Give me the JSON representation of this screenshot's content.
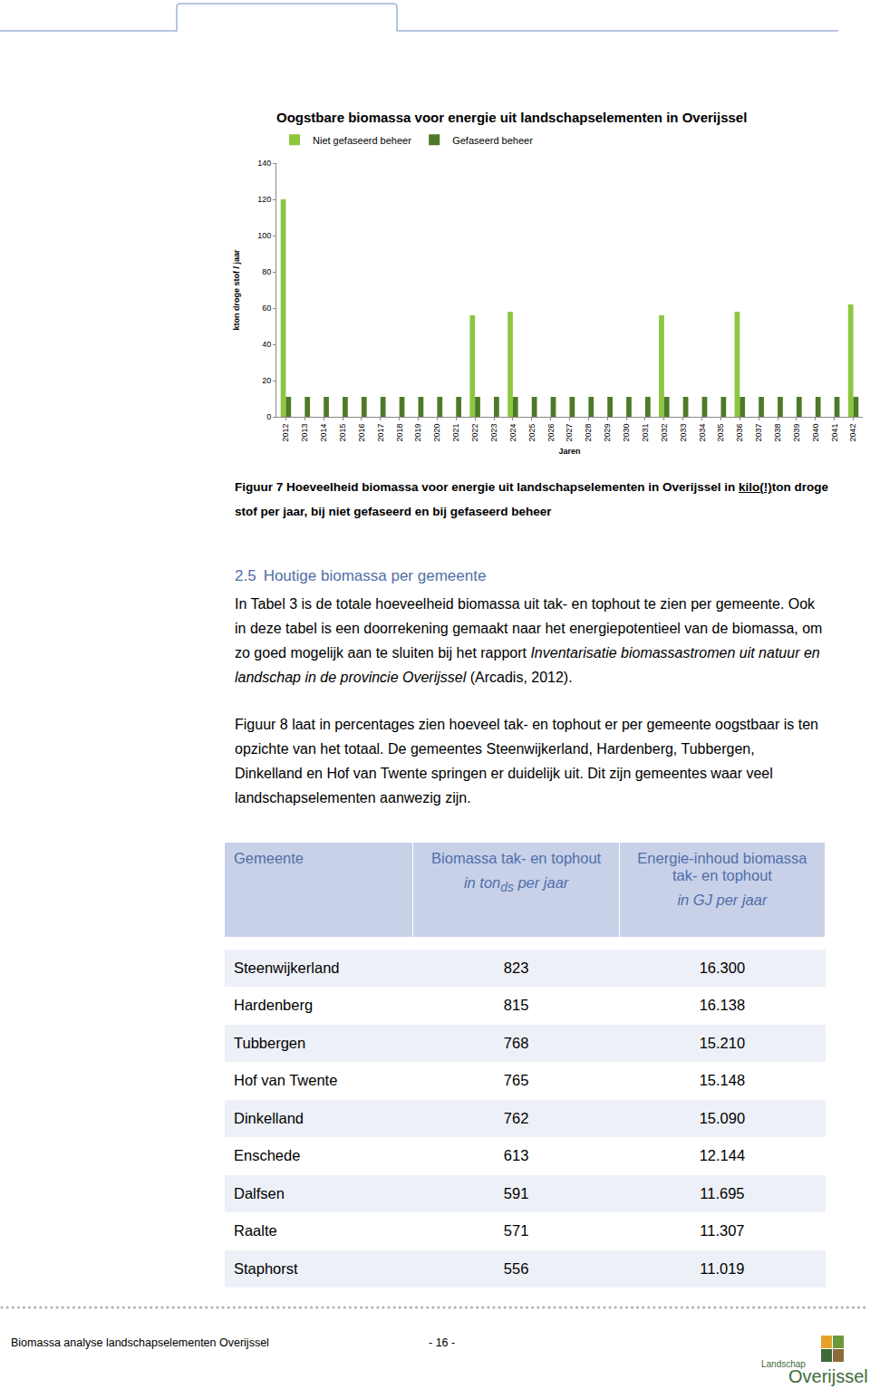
{
  "chart_data": {
    "type": "bar",
    "title": "Oogstbare biomassa voor energie uit landschapselementen in Overijssel",
    "x_label": "Jaren",
    "y_label": "kton droge stof / jaar",
    "categories": [
      "2012",
      "2013",
      "2014",
      "2015",
      "2016",
      "2017",
      "2018",
      "2019",
      "2020",
      "2021",
      "2022",
      "2023",
      "2024",
      "2025",
      "2026",
      "2027",
      "2028",
      "2029",
      "2030",
      "2031",
      "2032",
      "2033",
      "2034",
      "2035",
      "2036",
      "2037",
      "2038",
      "2039",
      "2040",
      "2041",
      "2042"
    ],
    "series": [
      {
        "name": "Niet gefaseerd beheer",
        "color": "#8dc63f",
        "values": [
          120,
          0,
          0,
          0,
          0,
          0,
          0,
          0,
          0,
          0,
          56,
          0,
          58,
          0,
          0,
          0,
          0,
          0,
          0,
          0,
          56,
          0,
          0,
          0,
          58,
          0,
          0,
          0,
          0,
          0,
          62
        ]
      },
      {
        "name": "Gefaseerd beheer",
        "color": "#4e7a27",
        "values": [
          11,
          11,
          11,
          11,
          11,
          11,
          11,
          11,
          11,
          11,
          11,
          11,
          11,
          11,
          11,
          11,
          11,
          11,
          11,
          11,
          11,
          11,
          11,
          11,
          11,
          11,
          11,
          11,
          11,
          11,
          11
        ]
      }
    ],
    "ylim": [
      0,
      140
    ],
    "yticks": [
      0,
      20,
      40,
      60,
      80,
      100,
      120,
      140
    ],
    "grid": false,
    "legend": "top left"
  },
  "document": {
    "caption": {
      "before": "Figuur 7 Hoeveelheid biomassa voor energie uit landschapselementen in Overijssel in ",
      "underlined": "kilo(!)",
      "after": "ton droge stof per jaar, bij niet gefaseerd en bij gefaseerd beheer"
    },
    "heading": {
      "number": "2.5",
      "text": "Houtige biomassa per gemeente"
    },
    "paragraphs": [
      [
        {
          "text": "In Tabel 3 is de totale hoeveelheid biomassa uit tak- en tophout te zien per gemeente. Ook in deze tabel is een doorrekening gemaakt naar het energiepotentieel van de biomassa, om zo goed mogelijk aan te sluiten bij het rapport ",
          "italic": false
        },
        {
          "text": "Inventarisatie biomassastromen uit natuur en landschap in de provincie Overijssel",
          "italic": true
        },
        {
          "text": " (Arcadis, 2012).",
          "italic": false
        }
      ],
      [
        {
          "text": "Figuur 8 laat in percentages zien hoeveel tak- en tophout er per gemeente oogstbaar is ten opzichte van het totaal. De gemeentes Steenwijkerland, Hardenberg, Tubbergen, Dinkelland en Hof van Twente springen er duidelijk uit. Dit zijn gemeentes waar veel landschapselementen aanwezig zijn.",
          "italic": false
        }
      ]
    ],
    "table": {
      "header": [
        {
          "text": "Gemeente"
        },
        {
          "text": "Biomassa tak- en tophout",
          "unit": "in ton",
          "sub": "ds",
          "unit_after": " per jaar"
        },
        {
          "text": "Energie-inhoud biomassa tak- en tophout",
          "unit": "in GJ per jaar"
        }
      ],
      "rows": [
        [
          "Steenwijkerland",
          "823",
          "16.300"
        ],
        [
          "Hardenberg",
          "815",
          "16.138"
        ],
        [
          "Tubbergen",
          "768",
          "15.210"
        ],
        [
          "Hof van Twente",
          "765",
          "15.148"
        ],
        [
          "Dinkelland",
          "762",
          "15.090"
        ],
        [
          "Enschede",
          "613",
          "12.144"
        ],
        [
          "Dalfsen",
          "591",
          "11.695"
        ],
        [
          "Raalte",
          "571",
          "11.307"
        ],
        [
          "Staphorst",
          "556",
          "11.019"
        ]
      ]
    },
    "footer": {
      "text": "Biomassa analyse landschapselementen Overijssel",
      "page": "- 16 -",
      "logo": [
        "Landschap",
        "Overijssel"
      ]
    }
  }
}
